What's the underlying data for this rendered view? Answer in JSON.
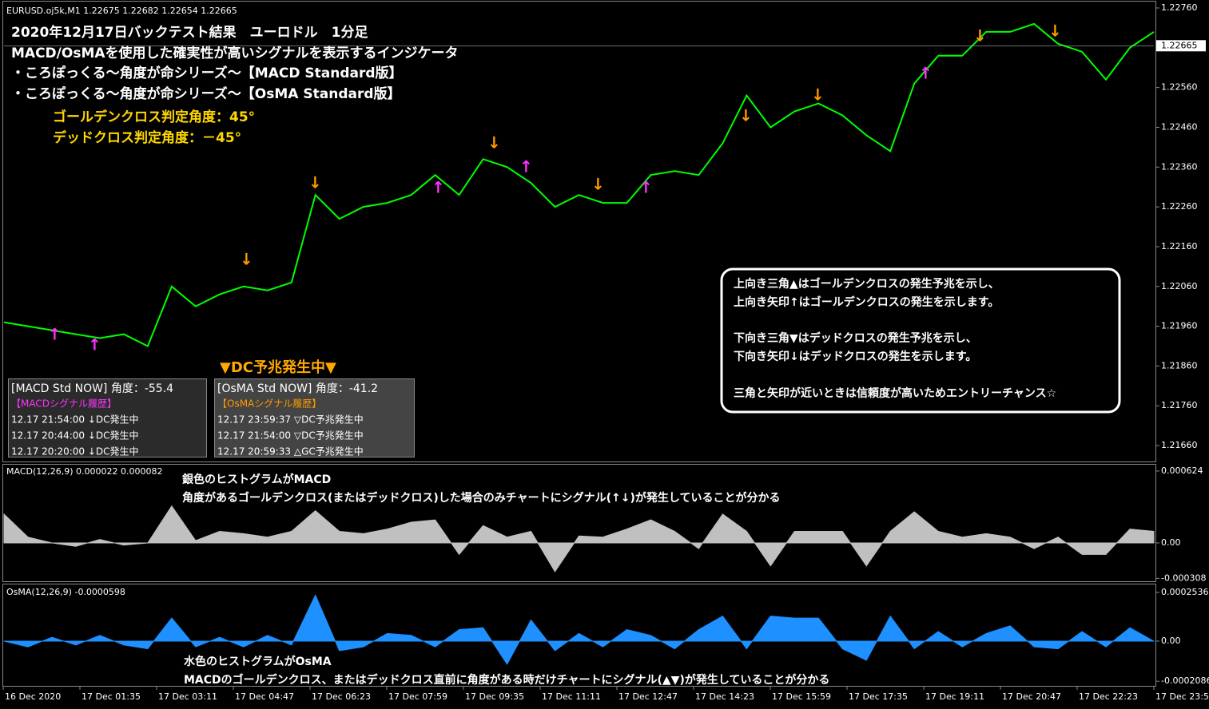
{
  "header": {
    "symbol": "EURUSD.oj5k,M1  1.22675 1.22682 1.22654 1.22665"
  },
  "notes": [
    "2020年12月17日バックテスト結果　ユーロドル　1分足",
    "MACD/OsMAを使用した確実性が高いシグナルを表示するインジケータ",
    "・ころぽっくる～角度が命シリーズ～【MACD Standard版】",
    "・ころぽっくる～角度が命シリーズ～【OsMA Standard版】",
    "ゴールデンクロス判定角度：45°",
    "デッドクロス判定角度：－45°"
  ],
  "price_panel": {
    "ylim": [
      1.2162,
      1.22776
    ],
    "yticks": [
      {
        "value": 1.2276,
        "label": "1.22760"
      },
      {
        "value": 1.2256,
        "label": "1.22560"
      },
      {
        "value": 1.2246,
        "label": "1.22460"
      },
      {
        "value": 1.2236,
        "label": "1.22360"
      },
      {
        "value": 1.2226,
        "label": "1.22260"
      },
      {
        "value": 1.2216,
        "label": "1.22160"
      },
      {
        "value": 1.2206,
        "label": "1.22060"
      },
      {
        "value": 1.2196,
        "label": "1.21960"
      },
      {
        "value": 1.2186,
        "label": "1.21860"
      },
      {
        "value": 1.2176,
        "label": "1.21760"
      },
      {
        "value": 1.2166,
        "label": "1.21660"
      }
    ],
    "current_price": 1.22665,
    "color": "#00ff00",
    "values": [
      1.2197,
      1.2196,
      1.2195,
      1.2194,
      1.2193,
      1.2194,
      1.2191,
      1.2206,
      1.2201,
      1.2204,
      1.2206,
      1.2205,
      1.2207,
      1.2229,
      1.2223,
      1.2226,
      1.2227,
      1.2229,
      1.2234,
      1.2229,
      1.2238,
      1.2236,
      1.2232,
      1.2226,
      1.2229,
      1.2227,
      1.2227,
      1.2234,
      1.2235,
      1.2234,
      1.2242,
      1.2254,
      1.2246,
      1.225,
      1.2252,
      1.2249,
      1.2244,
      1.224,
      1.2257,
      1.2264,
      1.2264,
      1.227,
      1.227,
      1.2272,
      1.2267,
      1.2265,
      1.2258,
      1.2266,
      1.227
    ]
  },
  "macd_panel": {
    "label": "MACD(12,26,9) 0.000022 0.000082",
    "annotations": [
      "銀色のヒストグラムがMACD",
      "角度があるゴールデンクロス(またはデッドクロス)した場合のみチャートにシグナル(↑↓)が発生していることが分かる"
    ],
    "ylim": [
      -0.000333,
      0.000679
    ],
    "yticks": [
      0.000624,
      {
        "value": 0,
        "label": "0.00"
      },
      -0.000308
    ],
    "color": "#c0c0c0",
    "values": [
      0.00025,
      5e-05,
      0,
      -3e-05,
      3e-05,
      -2e-05,
      0,
      0.00032,
      2e-05,
      0.0001,
      8e-05,
      5e-05,
      0.0001,
      0.00028,
      0.0001,
      8e-05,
      0.00012,
      0.00018,
      0.0002,
      -0.0001,
      0.00015,
      5e-05,
      0.0001,
      -0.00025,
      6e-05,
      5e-05,
      0.00012,
      0.0002,
      0.0001,
      -5e-05,
      0.00025,
      0.0001,
      -0.0002,
      0.0001,
      0.0001,
      0.0001,
      -0.0002,
      0.0001,
      0.00027,
      0.0001,
      5e-05,
      8e-05,
      5e-05,
      -5e-05,
      5e-05,
      -0.0001,
      -0.0001,
      0.00012,
      0.0001
    ]
  },
  "osma_panel": {
    "label": "OsMA(12,26,9) -0.0000598",
    "annotations": [
      "水色のヒストグラムがOsMA",
      "MACDのゴールデンクロス、またはデッドクロス直前に角度がある時だけチャートにシグナル(▲▼)が発生していることが分かる"
    ],
    "ylim": [
      -0.000237,
      0.0002952
    ],
    "yticks": [
      0.0002536,
      {
        "value": 0,
        "label": "0.00"
      },
      -0.0002086
    ],
    "color": "#1e90ff",
    "values": [
      0,
      -3e-05,
      2e-05,
      -2e-05,
      3e-05,
      -2e-05,
      -4e-05,
      0.00012,
      -3e-05,
      2e-05,
      -3e-05,
      3e-05,
      -2e-05,
      0.00024,
      -5e-05,
      -3e-05,
      4e-05,
      3e-05,
      -3e-05,
      6e-05,
      7e-05,
      -0.00012,
      0.00011,
      -5e-05,
      4e-05,
      -3e-05,
      6e-05,
      3e-05,
      -4e-05,
      6e-05,
      0.00013,
      -4e-05,
      0.00013,
      0.00012,
      0.00012,
      -4e-05,
      -0.0001,
      0.00013,
      -4e-05,
      5e-05,
      -3e-05,
      4e-05,
      8e-05,
      -3e-05,
      -4e-05,
      5e-05,
      -3e-05,
      7e-05,
      0
    ]
  },
  "x_labels": [
    "16 Dec 2020",
    "17 Dec 01:35",
    "17 Dec 03:11",
    "17 Dec 04:47",
    "17 Dec 06:23",
    "17 Dec 07:59",
    "17 Dec 09:35",
    "17 Dec 11:11",
    "17 Dec 12:47",
    "17 Dec 14:23",
    "17 Dec 15:59",
    "17 Dec 17:35",
    "17 Dec 19:11",
    "17 Dec 20:47",
    "17 Dec 22:23",
    "17 Dec 23:5"
  ],
  "info_boxes": [
    {
      "header": "[MACD Std NOW] 角度：-55.4",
      "subheader": "【MACDシグナル履歴】",
      "rows": [
        "12.17 21:54:00 ↓DC発生中",
        "12.17 20:44:00 ↓DC発生中",
        "12.17 20:20:00 ↓DC発生中"
      ]
    },
    {
      "header": "[OsMA Std NOW] 角度：-41.2",
      "subheader": "【OsMAシグナル履歴】",
      "rows": [
        "12.17 23:59:37 ▽DC予兆発生中",
        "12.17 21:54:00 ▽DC予兆発生中",
        "12.17 20:59:33 △GC予兆発生中"
      ]
    }
  ],
  "dc_banner": "▼DC予兆発生中▼",
  "explanation": [
    "上向き三角▲はゴールデンクロスの発生予兆を示し、",
    "上向き矢印↑はゴールデンクロスの発生を示します。",
    "下向き三角▼はデッドクロスの発生予兆を示し、",
    "下向き矢印↓はデッドクロスの発生を示します。",
    "三角と矢印が近いときは信頼度が高いためエントリーチャンス☆"
  ]
}
